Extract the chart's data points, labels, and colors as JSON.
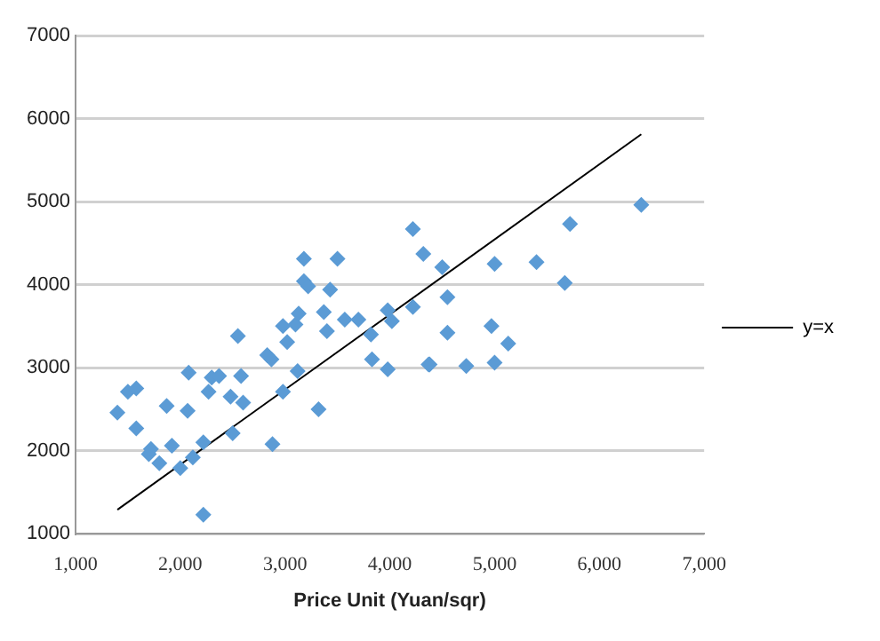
{
  "chart_data": {
    "type": "scatter",
    "xlabel": "Price Unit (Yuan/sqr)",
    "xlim": [
      1000,
      7000
    ],
    "xticks": [
      {
        "value": 1000,
        "label": "1,000"
      },
      {
        "value": 2000,
        "label": "2,000"
      },
      {
        "value": 3000,
        "label": "3,000"
      },
      {
        "value": 4000,
        "label": "4,000"
      },
      {
        "value": 5000,
        "label": "5,000"
      },
      {
        "value": 6000,
        "label": "6,000"
      },
      {
        "value": 7000,
        "label": "7,000"
      }
    ],
    "ylim": [
      1000,
      7000
    ],
    "yticks": [
      1000,
      2000,
      3000,
      4000,
      5000,
      6000,
      7000
    ],
    "grid": "y",
    "legend": "right",
    "series": [
      {
        "type": "scatter",
        "color": "#5b9bd5",
        "marker": "diamond",
        "x": [
          1400,
          1500,
          1580,
          1580,
          1700,
          1720,
          1800,
          1870,
          1920,
          2000,
          2070,
          2080,
          2120,
          2220,
          2220,
          2270,
          2300,
          2370,
          2480,
          2500,
          2550,
          2580,
          2600,
          2830,
          2870,
          2880,
          2980,
          2980,
          3020,
          3120,
          3100,
          3130,
          3180,
          3180,
          3220,
          3320,
          3370,
          3400,
          3430,
          3500,
          3570,
          3700,
          3820,
          3830,
          3980,
          3980,
          4020,
          4220,
          4220,
          4320,
          4380,
          4370,
          4500,
          4550,
          4550,
          4730,
          4970,
          5000,
          5130,
          5000,
          5400,
          5670,
          5720,
          6400
        ],
        "values": [
          2460,
          2710,
          2750,
          2270,
          1960,
          2020,
          1850,
          2540,
          2060,
          1790,
          2480,
          2940,
          1920,
          2100,
          1230,
          2710,
          2880,
          2900,
          2650,
          2210,
          3380,
          2900,
          2580,
          3150,
          3100,
          2080,
          2710,
          3500,
          3310,
          2960,
          3520,
          3650,
          4310,
          4040,
          3980,
          2500,
          3670,
          3440,
          3940,
          4310,
          3580,
          3580,
          3400,
          3100,
          3690,
          2980,
          3560,
          3730,
          4670,
          4370,
          3040,
          3040,
          4210,
          3850,
          3420,
          3020,
          3500,
          4250,
          3290,
          3060,
          4270,
          4020,
          4730,
          4960
        ]
      },
      {
        "type": "line",
        "name": "y=x",
        "color": "#000000",
        "marker": "none",
        "line_style": "solid",
        "x": [
          1400,
          6400
        ],
        "values": [
          1290,
          5810
        ]
      }
    ]
  }
}
